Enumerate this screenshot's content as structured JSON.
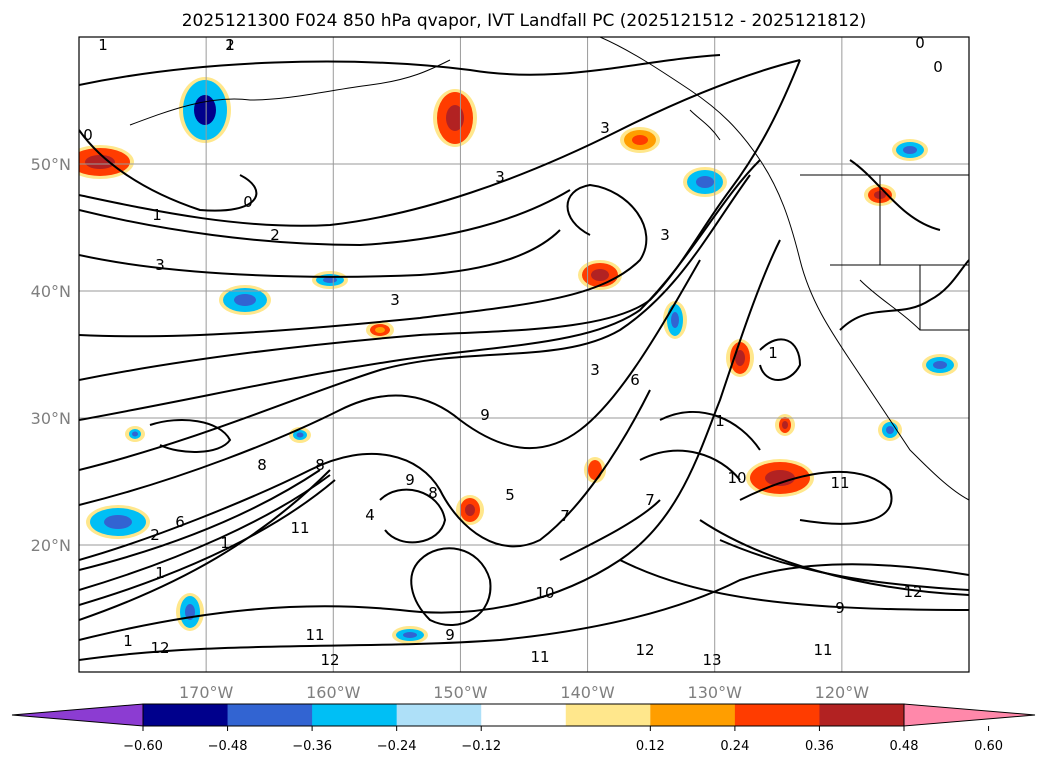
{
  "title": "2025121300 F024 850 hPa qvapor, IVT Landfall PC (2025121512 - 2025121812)",
  "map": {
    "lon_range": [
      -180,
      -110
    ],
    "lat_range": [
      10,
      60
    ],
    "lat_ticks": [
      {
        "value": 50,
        "label": "50°N"
      },
      {
        "value": 40,
        "label": "40°N"
      },
      {
        "value": 30,
        "label": "30°N"
      },
      {
        "value": 20,
        "label": "20°N"
      }
    ],
    "lon_ticks": [
      {
        "value": -170,
        "label": "170°W"
      },
      {
        "value": -160,
        "label": "160°W"
      },
      {
        "value": -150,
        "label": "150°W"
      },
      {
        "value": -140,
        "label": "140°W"
      },
      {
        "value": -130,
        "label": "130°W"
      },
      {
        "value": -120,
        "label": "120°W"
      }
    ],
    "gridlines": true,
    "coastlines": true,
    "contour_labels": [
      "1",
      "2",
      "1",
      "0",
      "3",
      "3",
      "0",
      "1",
      "2",
      "3",
      "3",
      "3",
      "1",
      "1",
      "3",
      "6",
      "9",
      "8",
      "8",
      "9",
      "8",
      "5",
      "6",
      "2",
      "1",
      "11",
      "12",
      "11",
      "10",
      "12",
      "11",
      "7",
      "9",
      "7",
      "10",
      "11",
      "12",
      "12",
      "13",
      "11",
      "9",
      "4",
      "1",
      "1",
      "0",
      "0"
    ]
  },
  "colorbar": {
    "ticks": [
      "−0.60",
      "−0.48",
      "−0.36",
      "−0.24",
      "−0.12",
      "0.12",
      "0.24",
      "0.36",
      "0.48",
      "0.60"
    ],
    "colors": [
      "#8c3cd2",
      "#00008c",
      "#3264d2",
      "#00bff5",
      "#aee0f8",
      "#ffffff",
      "#ffe78c",
      "#ff9e00",
      "#ff3c00",
      "#b22222",
      "#ff88aa"
    ],
    "extend": "both"
  }
}
